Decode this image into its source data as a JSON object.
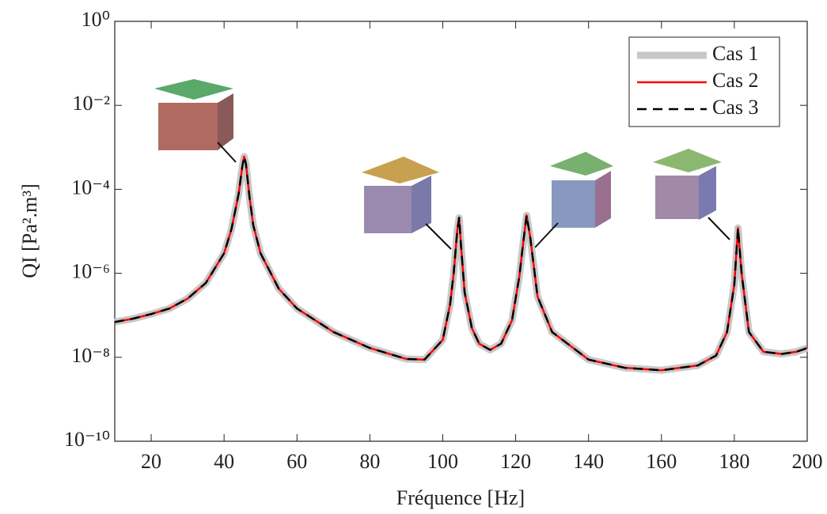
{
  "chart_data": {
    "type": "line",
    "x_label": "Fréquence [Hz]",
    "y_label": "QI [Pa².m³]",
    "y_scale": "log",
    "grid": false,
    "legend_position": "upper right",
    "xlim": [
      10,
      200
    ],
    "xticks": [
      20,
      40,
      60,
      80,
      100,
      120,
      140,
      160,
      180,
      200
    ],
    "ylim": [
      1e-10,
      1
    ],
    "yticks": [
      {
        "value": 1e-10,
        "label": "10⁻¹⁰"
      },
      {
        "value": 1e-08,
        "label": "10⁻⁸"
      },
      {
        "value": 1e-06,
        "label": "10⁻⁶"
      },
      {
        "value": 0.0001,
        "label": "10⁻⁴"
      },
      {
        "value": 0.01,
        "label": "10⁻²"
      },
      {
        "value": 1,
        "label": "10⁰"
      }
    ],
    "x": [
      10,
      15,
      20,
      25,
      30,
      35,
      40,
      42,
      44,
      45,
      45.5,
      46,
      47,
      48,
      50,
      55,
      60,
      70,
      80,
      90,
      95,
      100,
      102,
      103,
      104,
      104.5,
      105,
      106,
      108,
      110,
      113,
      116,
      119,
      121,
      122,
      123,
      124,
      126,
      130,
      140,
      150,
      160,
      170,
      175,
      178,
      180,
      181,
      182,
      184,
      188,
      193,
      197,
      200
    ],
    "series": [
      {
        "name": "Cas 1",
        "color": "#c8c8c8",
        "linewidth": 9,
        "style": "solid",
        "values": [
          6.9e-08,
          8.3e-08,
          1.07e-07,
          1.45e-07,
          2.5e-07,
          5.9e-07,
          3e-06,
          1.1e-05,
          7.9e-05,
          0.00035,
          0.0006,
          0.0004,
          6.3e-05,
          1.4e-05,
          3e-06,
          4.3e-07,
          1.45e-07,
          4e-08,
          1.66e-08,
          9.1e-09,
          8.8e-09,
          2.6e-08,
          1.8e-07,
          1e-06,
          1.1e-05,
          2.1e-05,
          4.7e-06,
          3.5e-07,
          4.9e-08,
          2.1e-08,
          1.5e-08,
          2.1e-08,
          7.6e-08,
          8.3e-07,
          4.7e-06,
          2.4e-05,
          7.2e-06,
          2.8e-07,
          4e-08,
          8.8e-09,
          5.6e-09,
          4.9e-09,
          6.4e-09,
          1.1e-08,
          4e-08,
          5.4e-07,
          1.2e-05,
          1e-06,
          4e-08,
          1.35e-08,
          1.2e-08,
          1.35e-08,
          1.66e-08
        ]
      },
      {
        "name": "Cas 2",
        "color": "#ff0000",
        "linewidth": 2.5,
        "style": "solid",
        "values": [
          6.9e-08,
          8.3e-08,
          1.07e-07,
          1.45e-07,
          2.5e-07,
          5.9e-07,
          3e-06,
          1.1e-05,
          7.9e-05,
          0.00035,
          0.0006,
          0.0004,
          6.3e-05,
          1.4e-05,
          3e-06,
          4.3e-07,
          1.45e-07,
          4e-08,
          1.66e-08,
          9.1e-09,
          8.8e-09,
          2.6e-08,
          1.8e-07,
          1e-06,
          1.1e-05,
          2.1e-05,
          4.7e-06,
          3.5e-07,
          4.9e-08,
          2.1e-08,
          1.5e-08,
          2.1e-08,
          7.6e-08,
          8.3e-07,
          4.7e-06,
          2.4e-05,
          7.2e-06,
          2.8e-07,
          4e-08,
          8.8e-09,
          5.6e-09,
          4.9e-09,
          6.4e-09,
          1.1e-08,
          4e-08,
          5.4e-07,
          1.2e-05,
          1e-06,
          4e-08,
          1.35e-08,
          1.2e-08,
          1.35e-08,
          1.66e-08
        ]
      },
      {
        "name": "Cas 3",
        "color": "#000000",
        "linewidth": 2.5,
        "style": "dashed",
        "values": [
          6.9e-08,
          8.3e-08,
          1.07e-07,
          1.45e-07,
          2.5e-07,
          5.9e-07,
          3e-06,
          1.1e-05,
          7.9e-05,
          0.00035,
          0.0006,
          0.0004,
          6.3e-05,
          1.4e-05,
          3e-06,
          4.3e-07,
          1.45e-07,
          4e-08,
          1.66e-08,
          9.1e-09,
          8.8e-09,
          2.6e-08,
          1.8e-07,
          1e-06,
          1.1e-05,
          2.1e-05,
          4.7e-06,
          3.5e-07,
          4.9e-08,
          2.1e-08,
          1.5e-08,
          2.1e-08,
          7.6e-08,
          8.3e-07,
          4.7e-06,
          2.4e-05,
          7.2e-06,
          2.8e-07,
          4e-08,
          8.8e-09,
          5.6e-09,
          4.9e-09,
          6.4e-09,
          1.1e-08,
          4e-08,
          5.4e-07,
          1.2e-05,
          1e-06,
          4e-08,
          1.35e-08,
          1.2e-08,
          1.35e-08,
          1.66e-08
        ]
      }
    ]
  }
}
